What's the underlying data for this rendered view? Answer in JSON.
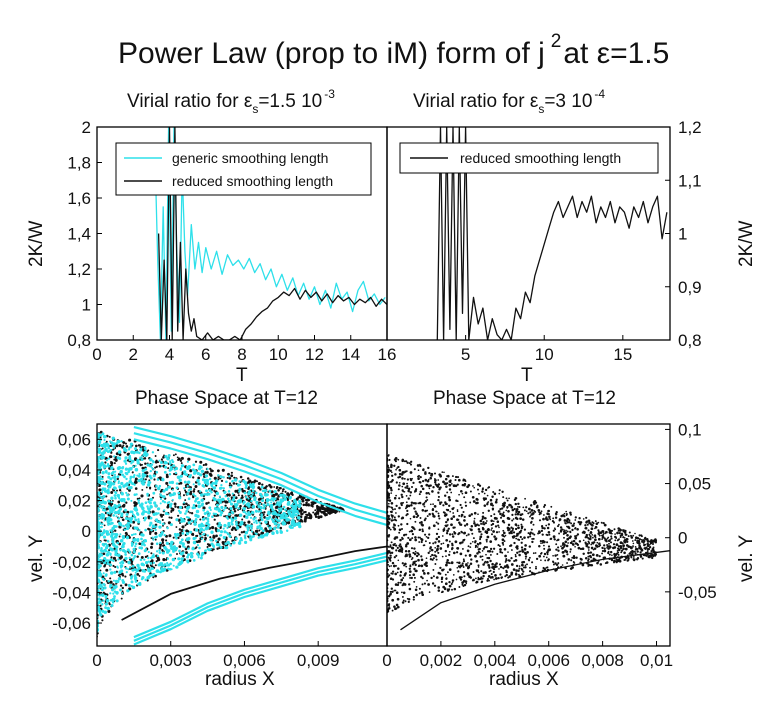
{
  "figure": {
    "title_main": "Power Law (prop to iM) form of j",
    "title_exp": "2",
    "title_tail": "at ε=1.5"
  },
  "colors": {
    "cyan": "#2ee0ea",
    "black": "#111111"
  },
  "chart_data": [
    {
      "id": "virial_left",
      "type": "line",
      "title_prefix": "Virial ratio for  ε",
      "title_sub": "s",
      "title_value": "=1.5 10",
      "title_exp": "-3",
      "xlabel": "T",
      "ylabel": "2K/W",
      "xlim": [
        0,
        16
      ],
      "ylim": [
        0.8,
        2.0
      ],
      "x_ticks": [
        0,
        2,
        4,
        6,
        8,
        10,
        12,
        14,
        16
      ],
      "x_tick_labels": [
        "0",
        "2",
        "4",
        "6",
        "8",
        "10",
        "12",
        "14",
        "16"
      ],
      "y_ticks": [
        0.8,
        1.0,
        1.2,
        1.4,
        1.6,
        1.8,
        2.0
      ],
      "y_tick_labels": [
        "0,8",
        "1",
        "1,2",
        "1,4",
        "1,6",
        "1,8",
        "2"
      ],
      "legend": [
        "generic smoothing length",
        "reduced smoothing length"
      ],
      "legend_position": "top",
      "series": [
        {
          "name": "generic smoothing length",
          "color": "#2ee0ea",
          "x": [
            3.2,
            3.35,
            3.5,
            3.65,
            3.8,
            3.95,
            4.1,
            4.25,
            4.4,
            4.55,
            4.7,
            4.85,
            5.0,
            5.2,
            5.4,
            5.6,
            5.8,
            6.0,
            6.3,
            6.6,
            6.9,
            7.2,
            7.5,
            7.8,
            8.1,
            8.4,
            8.7,
            9.0,
            9.3,
            9.6,
            9.9,
            10.2,
            10.5,
            10.8,
            11.1,
            11.4,
            11.7,
            12.0,
            12.3,
            12.6,
            12.9,
            13.2,
            13.5,
            13.8,
            14.1,
            14.4,
            14.7,
            15.0,
            15.3,
            15.6,
            15.9
          ],
          "y": [
            1.85,
            1.25,
            0.8,
            1.55,
            0.8,
            2.0,
            0.85,
            2.0,
            1.3,
            0.9,
            1.75,
            1.3,
            1.05,
            1.45,
            1.2,
            1.35,
            1.18,
            1.32,
            1.2,
            1.3,
            1.17,
            1.28,
            1.22,
            1.25,
            1.2,
            1.26,
            1.18,
            1.23,
            1.14,
            1.2,
            1.1,
            1.17,
            1.08,
            1.15,
            1.05,
            1.12,
            1.03,
            1.1,
            1.0,
            1.08,
            0.98,
            1.12,
            1.03,
            1.07,
            0.96,
            1.08,
            1.13,
            1.02,
            1.06,
            1.0,
            1.04
          ]
        },
        {
          "name": "reduced smoothing length",
          "color": "#111111",
          "x": [
            3.4,
            3.55,
            3.7,
            3.85,
            4.0,
            4.15,
            4.3,
            4.45,
            4.6,
            4.75,
            4.9,
            5.05,
            5.2,
            5.35,
            5.5,
            5.8,
            6.1,
            6.4,
            6.7,
            7.0,
            7.3,
            7.6,
            7.9,
            8.2,
            8.5,
            8.8,
            9.1,
            9.4,
            9.7,
            10.0,
            10.3,
            10.6,
            10.9,
            11.2,
            11.5,
            11.8,
            12.1,
            12.4,
            12.7,
            13.0,
            13.3,
            13.6,
            13.9,
            14.2,
            14.5,
            14.8,
            15.1,
            15.4,
            15.7,
            16.0
          ],
          "y": [
            1.4,
            0.8,
            1.25,
            0.8,
            2.0,
            0.8,
            2.0,
            0.85,
            1.35,
            0.8,
            1.2,
            0.95,
            0.85,
            0.92,
            0.82,
            0.8,
            0.84,
            0.8,
            0.82,
            0.8,
            0.8,
            0.82,
            0.8,
            0.86,
            0.89,
            0.93,
            0.96,
            0.98,
            1.02,
            1.04,
            1.07,
            1.05,
            1.09,
            1.03,
            1.08,
            1.04,
            1.07,
            1.02,
            1.06,
            1.01,
            1.05,
            1.02,
            1.04,
            1.0,
            1.03,
            1.01,
            1.04,
            0.99,
            1.03,
            1.0
          ]
        }
      ]
    },
    {
      "id": "virial_right",
      "type": "line",
      "title_prefix": "Virial ratio for  ε",
      "title_sub": "s",
      "title_value": "=3 10",
      "title_exp": "-4",
      "xlabel": "T",
      "ylabel": "2K/W",
      "xlim": [
        0,
        18
      ],
      "ylim": [
        0.8,
        1.2
      ],
      "x_ticks": [
        5,
        10,
        15
      ],
      "x_tick_labels": [
        "5",
        "10",
        "15"
      ],
      "y_ticks": [
        0.8,
        0.9,
        1.0,
        1.1,
        1.2
      ],
      "y_tick_labels": [
        "0,8",
        "0,9",
        "1",
        "1,1",
        "1,2"
      ],
      "legend": [
        "reduced smoothing length"
      ],
      "legend_position": "top",
      "series": [
        {
          "name": "reduced smoothing length",
          "color": "#111111",
          "x": [
            3.2,
            3.4,
            3.6,
            3.8,
            4.0,
            4.2,
            4.4,
            4.6,
            4.8,
            5.0,
            5.2,
            5.5,
            5.8,
            6.1,
            6.4,
            6.7,
            7.0,
            7.3,
            7.6,
            7.9,
            8.2,
            8.5,
            8.8,
            9.1,
            9.4,
            9.7,
            10.0,
            10.3,
            10.6,
            10.9,
            11.2,
            11.5,
            11.8,
            12.1,
            12.4,
            12.7,
            13.0,
            13.3,
            13.6,
            13.9,
            14.2,
            14.5,
            14.8,
            15.1,
            15.4,
            15.7,
            16.0,
            16.3,
            16.6,
            16.9,
            17.2,
            17.5,
            17.8
          ],
          "y": [
            0.8,
            1.2,
            0.8,
            1.2,
            0.82,
            1.2,
            0.8,
            1.2,
            0.85,
            1.2,
            0.8,
            0.88,
            0.83,
            0.86,
            0.8,
            0.84,
            0.81,
            0.8,
            0.82,
            0.8,
            0.86,
            0.84,
            0.89,
            0.87,
            0.92,
            0.95,
            0.98,
            1.01,
            1.04,
            1.06,
            1.03,
            1.05,
            1.07,
            1.03,
            1.06,
            1.04,
            1.07,
            1.02,
            1.05,
            1.03,
            1.06,
            1.02,
            1.05,
            1.04,
            1.01,
            1.05,
            1.03,
            1.06,
            1.02,
            1.05,
            1.07,
            0.99,
            1.04
          ]
        }
      ]
    },
    {
      "id": "phase_left",
      "type": "scatter",
      "title": "Phase Space at T=12",
      "xlabel": "radius X",
      "ylabel": "vel. Y",
      "xlim": [
        0,
        0.0118
      ],
      "ylim": [
        -0.075,
        0.07
      ],
      "x_ticks": [
        0,
        0.003,
        0.006,
        0.009
      ],
      "x_tick_labels": [
        "0",
        "0,003",
        "0,006",
        "0,009"
      ],
      "y_ticks": [
        -0.06,
        -0.04,
        -0.02,
        0,
        0.02,
        0.04,
        0.06
      ],
      "y_tick_labels": [
        "-0,06",
        "-0,04",
        "-0,02",
        "0",
        "0,02",
        "0,04",
        "0,06"
      ],
      "series": [
        {
          "name": "generic smoothing length (outer contours)",
          "color": "#2ee0ea",
          "x": [
            0.0015,
            0.003,
            0.0045,
            0.006,
            0.0075,
            0.009,
            0.0105,
            0.0118
          ],
          "y_upper": [
            0.068,
            0.062,
            0.055,
            0.047,
            0.038,
            0.027,
            0.018,
            0.012
          ],
          "y_lower": [
            -0.074,
            -0.064,
            -0.052,
            -0.043,
            -0.036,
            -0.029,
            -0.024,
            -0.019
          ]
        },
        {
          "name": "reduced smoothing length (lower edge)",
          "color": "#111111",
          "x": [
            0.001,
            0.003,
            0.005,
            0.007,
            0.009,
            0.0105,
            0.0118
          ],
          "y": [
            -0.058,
            -0.041,
            -0.031,
            -0.024,
            -0.018,
            -0.013,
            -0.01
          ]
        }
      ]
    },
    {
      "id": "phase_right",
      "type": "scatter",
      "title": "Phase Space at T=12",
      "xlabel": "radius X",
      "ylabel": "vel. Y",
      "xlim": [
        0,
        0.0105
      ],
      "ylim": [
        -0.1,
        0.105
      ],
      "x_ticks": [
        0,
        0.002,
        0.004,
        0.006,
        0.008,
        0.01
      ],
      "x_tick_labels": [
        "0",
        "0,002",
        "0,004",
        "0,006",
        "0,008",
        "0,01"
      ],
      "y_ticks": [
        -0.05,
        0,
        0.05,
        0.1
      ],
      "y_tick_labels": [
        "-0,05",
        "0",
        "0,05",
        "0,1"
      ],
      "series": [
        {
          "name": "reduced smoothing length (lower edge)",
          "color": "#111111",
          "x": [
            0.0005,
            0.002,
            0.004,
            0.006,
            0.008,
            0.0105
          ],
          "y": [
            -0.085,
            -0.06,
            -0.043,
            -0.03,
            -0.02,
            -0.012
          ]
        }
      ]
    }
  ]
}
